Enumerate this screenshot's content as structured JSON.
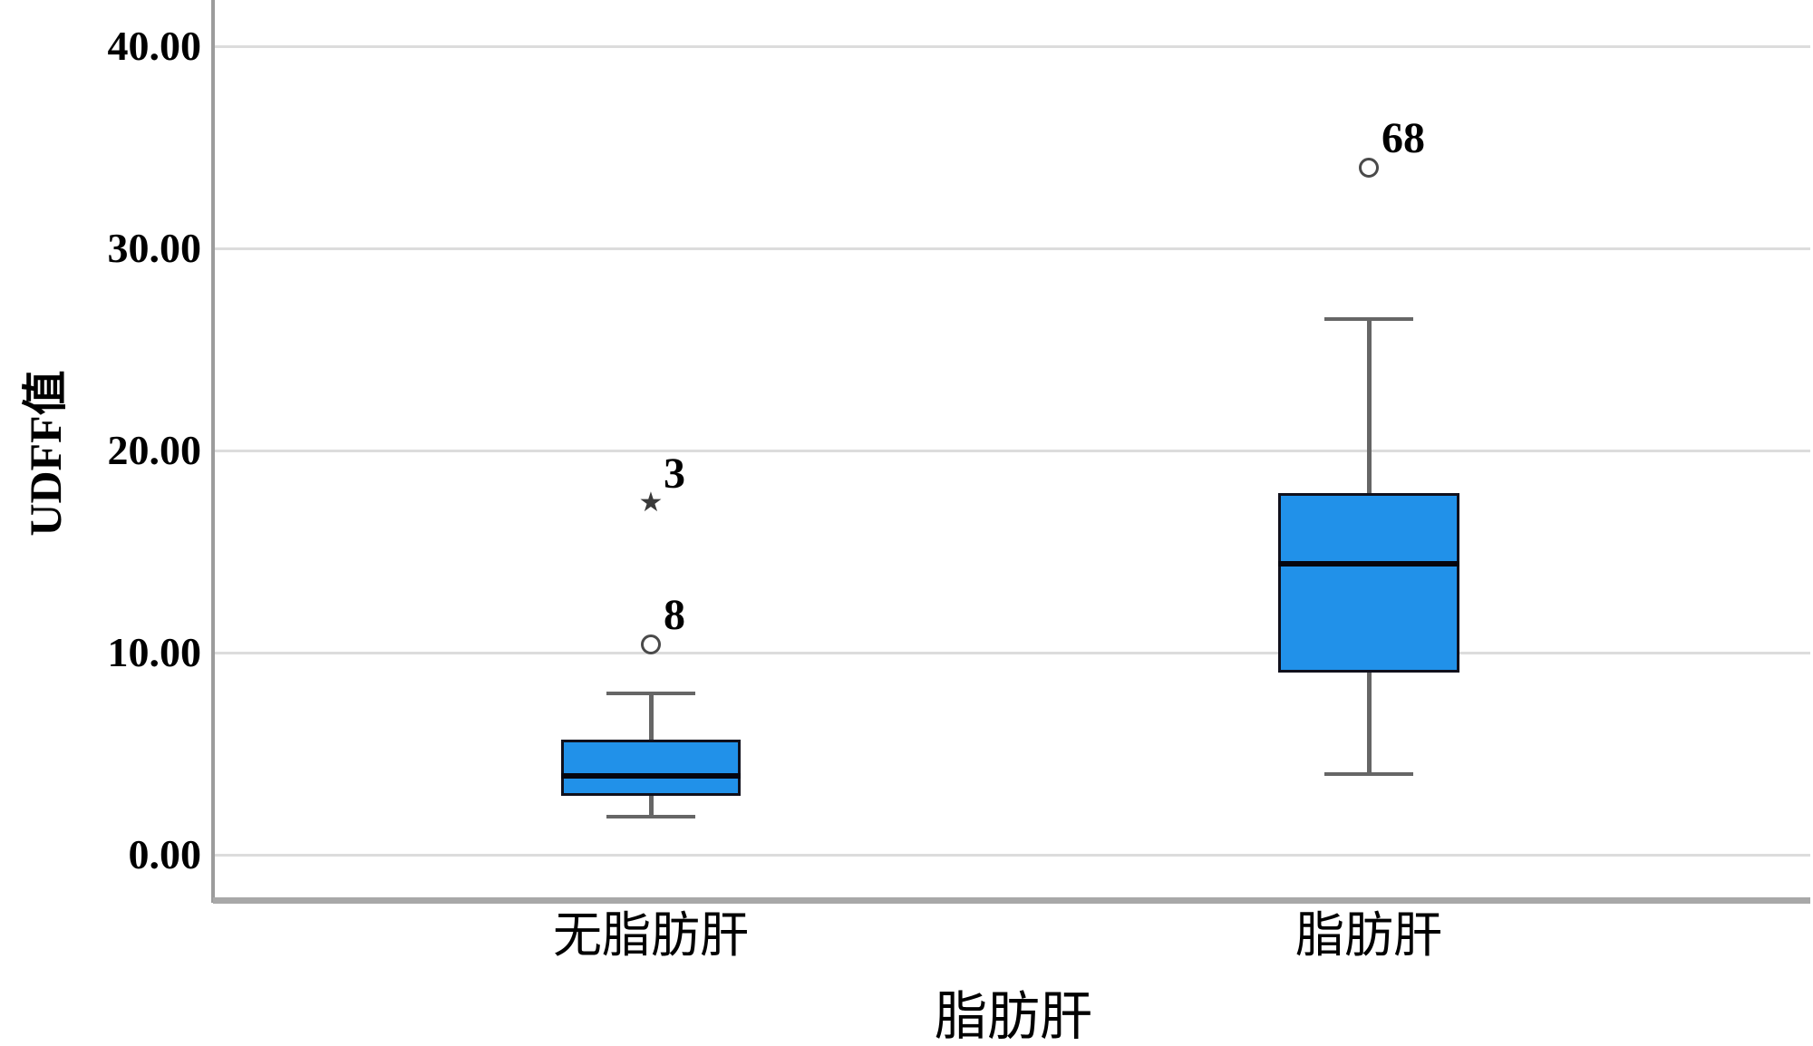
{
  "chart_data": {
    "type": "boxplot",
    "title": "",
    "xlabel": "脂肪肝",
    "ylabel": "UDFF值",
    "categories": [
      "无脂肪肝",
      "脂肪肝"
    ],
    "yticks": [
      0,
      10,
      20,
      30,
      40
    ],
    "ytick_labels": [
      "0.00",
      "10.00",
      "20.00",
      "30.00",
      "40.00"
    ],
    "ylim": [
      -2.2,
      42.3
    ],
    "grid": true,
    "legend": "none",
    "series": [
      {
        "category": "无脂肪肝",
        "whisker_low": 1.9,
        "q1": 2.9,
        "median": 3.9,
        "q3": 5.7,
        "whisker_high": 8.0,
        "outliers": [
          {
            "value": 10.4,
            "label": "8",
            "marker": "circle"
          },
          {
            "value": 17.4,
            "label": "3",
            "marker": "star"
          }
        ]
      },
      {
        "category": "脂肪肝",
        "whisker_low": 4.0,
        "q1": 9.0,
        "median": 14.4,
        "q3": 17.9,
        "whisker_high": 26.5,
        "outliers": [
          {
            "value": 34.0,
            "label": "68",
            "marker": "circle"
          }
        ]
      }
    ],
    "colors": {
      "box_fill": "#2191E9",
      "box_border": "#10101c",
      "median": "#06060f",
      "whisker": "#666666",
      "gridline": "#dcdcdc",
      "axis_line": "#9c9c9c",
      "frame_line": "#a8a8a8",
      "outlier": "#4a4a4a",
      "text": "#000000"
    }
  }
}
